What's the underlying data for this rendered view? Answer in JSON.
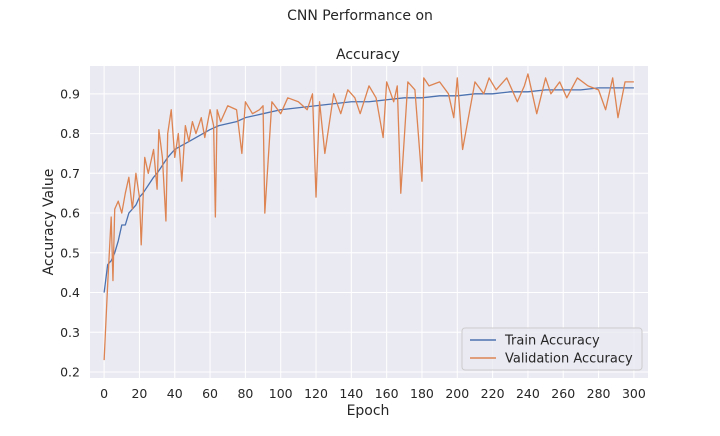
{
  "chart_data": {
    "type": "line",
    "title_line1": "CNN Performance on",
    "title_line2": "Accuracy",
    "xlabel": "Epoch",
    "ylabel": "Accuracy Value",
    "xlim": [
      -8,
      308
    ],
    "ylim": [
      0.185,
      0.97
    ],
    "xticks": [
      0,
      20,
      40,
      60,
      80,
      100,
      120,
      140,
      160,
      180,
      200,
      220,
      240,
      260,
      280,
      300
    ],
    "yticks": [
      0.2,
      0.3,
      0.4,
      0.5,
      0.6,
      0.7,
      0.8,
      0.9
    ],
    "grid": true,
    "legend_position": "lower-right",
    "series": [
      {
        "name": "Train Accuracy",
        "color": "#4c72b0",
        "x": [
          0,
          2,
          4,
          6,
          8,
          10,
          12,
          14,
          16,
          18,
          20,
          22,
          25,
          28,
          30,
          33,
          36,
          40,
          44,
          48,
          52,
          56,
          60,
          65,
          70,
          75,
          80,
          90,
          100,
          110,
          120,
          130,
          140,
          150,
          160,
          170,
          180,
          190,
          200,
          210,
          220,
          230,
          240,
          250,
          260,
          270,
          280,
          290,
          300
        ],
        "y": [
          0.4,
          0.47,
          0.48,
          0.5,
          0.53,
          0.57,
          0.57,
          0.6,
          0.61,
          0.62,
          0.64,
          0.65,
          0.67,
          0.69,
          0.7,
          0.72,
          0.74,
          0.76,
          0.77,
          0.78,
          0.79,
          0.8,
          0.81,
          0.82,
          0.825,
          0.83,
          0.84,
          0.85,
          0.86,
          0.865,
          0.87,
          0.875,
          0.88,
          0.88,
          0.885,
          0.89,
          0.89,
          0.895,
          0.895,
          0.9,
          0.9,
          0.905,
          0.905,
          0.91,
          0.91,
          0.91,
          0.915,
          0.915,
          0.915
        ]
      },
      {
        "name": "Validation Accuracy",
        "color": "#dd8452",
        "x": [
          0,
          2,
          4,
          5,
          6,
          8,
          10,
          12,
          14,
          16,
          18,
          20,
          21,
          23,
          25,
          28,
          30,
          31,
          33,
          35,
          36,
          38,
          40,
          42,
          44,
          46,
          48,
          50,
          52,
          55,
          57,
          60,
          62,
          63,
          64,
          66,
          70,
          75,
          78,
          80,
          84,
          88,
          90,
          91,
          95,
          100,
          104,
          110,
          115,
          118,
          120,
          122,
          125,
          130,
          134,
          138,
          142,
          145,
          150,
          154,
          158,
          160,
          164,
          166,
          168,
          172,
          176,
          180,
          181,
          184,
          190,
          195,
          198,
          200,
          203,
          210,
          215,
          218,
          222,
          228,
          234,
          238,
          240,
          245,
          250,
          253,
          258,
          262,
          268,
          274,
          280,
          284,
          288,
          291,
          295,
          300
        ],
        "y": [
          0.23,
          0.42,
          0.59,
          0.43,
          0.61,
          0.63,
          0.6,
          0.65,
          0.69,
          0.61,
          0.7,
          0.64,
          0.52,
          0.74,
          0.7,
          0.76,
          0.66,
          0.81,
          0.74,
          0.58,
          0.8,
          0.86,
          0.74,
          0.8,
          0.68,
          0.82,
          0.78,
          0.83,
          0.8,
          0.84,
          0.79,
          0.86,
          0.82,
          0.59,
          0.86,
          0.83,
          0.87,
          0.86,
          0.75,
          0.88,
          0.85,
          0.86,
          0.87,
          0.6,
          0.88,
          0.85,
          0.89,
          0.88,
          0.86,
          0.9,
          0.64,
          0.88,
          0.75,
          0.9,
          0.85,
          0.91,
          0.89,
          0.85,
          0.92,
          0.89,
          0.79,
          0.93,
          0.88,
          0.92,
          0.65,
          0.93,
          0.91,
          0.68,
          0.94,
          0.92,
          0.93,
          0.9,
          0.84,
          0.94,
          0.76,
          0.93,
          0.9,
          0.94,
          0.91,
          0.94,
          0.88,
          0.92,
          0.95,
          0.85,
          0.94,
          0.9,
          0.93,
          0.89,
          0.94,
          0.92,
          0.91,
          0.86,
          0.94,
          0.84,
          0.93,
          0.93
        ]
      }
    ]
  }
}
